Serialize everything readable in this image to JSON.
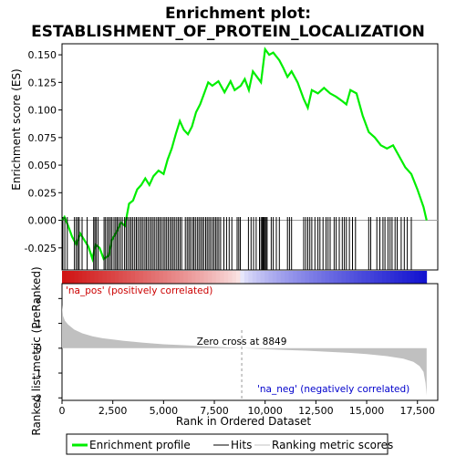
{
  "chart_data": {
    "title": "Enrichment plot:",
    "subtitle": "ESTABLISHMENT_OF_PROTEIN_LOCALIZATION",
    "x_axis": {
      "label": "Rank in Ordered Dataset",
      "range": [
        0,
        18500
      ],
      "ticks": [
        0,
        2500,
        5000,
        7500,
        10000,
        12500,
        15000,
        17500
      ],
      "tick_labels": [
        "0",
        "2,500",
        "5,000",
        "7,500",
        "10,000",
        "12,500",
        "15,000",
        "17,500"
      ]
    },
    "es_panel": {
      "type": "line",
      "ylabel": "Enrichment score (ES)",
      "ylim": [
        -0.045,
        0.16
      ],
      "yticks": [
        -0.025,
        0.0,
        0.025,
        0.05,
        0.075,
        0.1,
        0.125,
        0.15
      ],
      "ytick_labels": [
        "-0.025",
        "0.000",
        "0.025",
        "0.050",
        "0.075",
        "0.100",
        "0.125",
        "0.150"
      ],
      "series_name": "Enrichment profile",
      "color": "#00ee00",
      "points": [
        [
          0,
          0.0
        ],
        [
          120,
          0.003
        ],
        [
          300,
          -0.005
        ],
        [
          500,
          -0.015
        ],
        [
          700,
          -0.022
        ],
        [
          900,
          -0.012
        ],
        [
          1100,
          -0.018
        ],
        [
          1300,
          -0.024
        ],
        [
          1500,
          -0.035
        ],
        [
          1650,
          -0.022
        ],
        [
          1850,
          -0.025
        ],
        [
          2050,
          -0.035
        ],
        [
          2300,
          -0.032
        ],
        [
          2450,
          -0.018
        ],
        [
          2700,
          -0.01
        ],
        [
          2900,
          -0.002
        ],
        [
          3100,
          -0.005
        ],
        [
          3300,
          0.015
        ],
        [
          3500,
          0.018
        ],
        [
          3700,
          0.028
        ],
        [
          3900,
          0.032
        ],
        [
          4100,
          0.038
        ],
        [
          4300,
          0.032
        ],
        [
          4500,
          0.04
        ],
        [
          4750,
          0.045
        ],
        [
          5000,
          0.042
        ],
        [
          5200,
          0.055
        ],
        [
          5400,
          0.065
        ],
        [
          5600,
          0.078
        ],
        [
          5800,
          0.09
        ],
        [
          6000,
          0.082
        ],
        [
          6200,
          0.078
        ],
        [
          6400,
          0.085
        ],
        [
          6600,
          0.098
        ],
        [
          6800,
          0.105
        ],
        [
          7000,
          0.115
        ],
        [
          7200,
          0.125
        ],
        [
          7400,
          0.122
        ],
        [
          7700,
          0.126
        ],
        [
          8000,
          0.116
        ],
        [
          8300,
          0.126
        ],
        [
          8500,
          0.118
        ],
        [
          8800,
          0.122
        ],
        [
          9000,
          0.128
        ],
        [
          9200,
          0.118
        ],
        [
          9400,
          0.135
        ],
        [
          9600,
          0.13
        ],
        [
          9800,
          0.125
        ],
        [
          10000,
          0.155
        ],
        [
          10200,
          0.15
        ],
        [
          10400,
          0.152
        ],
        [
          10700,
          0.145
        ],
        [
          10900,
          0.138
        ],
        [
          11100,
          0.13
        ],
        [
          11300,
          0.135
        ],
        [
          11600,
          0.125
        ],
        [
          11900,
          0.11
        ],
        [
          12100,
          0.102
        ],
        [
          12300,
          0.118
        ],
        [
          12600,
          0.115
        ],
        [
          12900,
          0.12
        ],
        [
          13200,
          0.115
        ],
        [
          13500,
          0.112
        ],
        [
          13800,
          0.108
        ],
        [
          14000,
          0.105
        ],
        [
          14200,
          0.118
        ],
        [
          14500,
          0.115
        ],
        [
          14800,
          0.095
        ],
        [
          15100,
          0.08
        ],
        [
          15400,
          0.075
        ],
        [
          15700,
          0.068
        ],
        [
          16000,
          0.065
        ],
        [
          16300,
          0.068
        ],
        [
          16600,
          0.058
        ],
        [
          16900,
          0.048
        ],
        [
          17200,
          0.042
        ],
        [
          17500,
          0.028
        ],
        [
          17800,
          0.012
        ],
        [
          17950,
          0.0
        ]
      ]
    },
    "hits": {
      "series_name": "Hits",
      "color": "#000000",
      "positions": [
        40,
        140,
        260,
        610,
        700,
        780,
        850,
        990,
        1240,
        1560,
        1620,
        1690,
        1780,
        2070,
        2140,
        2230,
        2310,
        2390,
        2460,
        2560,
        2640,
        2710,
        2790,
        2880,
        2970,
        3080,
        3160,
        3240,
        3330,
        3410,
        3490,
        3580,
        3660,
        3740,
        3830,
        3910,
        3990,
        4080,
        4160,
        4240,
        4330,
        4410,
        4490,
        4570,
        4660,
        4740,
        4820,
        4900,
        4990,
        5070,
        5150,
        5230,
        5320,
        5400,
        5480,
        5560,
        5650,
        5730,
        5810,
        5890,
        6070,
        6160,
        6240,
        6320,
        6410,
        6490,
        6570,
        6660,
        6740,
        6820,
        6900,
        6980,
        7070,
        7150,
        7230,
        7310,
        7400,
        7480,
        7560,
        7640,
        7720,
        7810,
        7970,
        8100,
        8230,
        8360,
        8620,
        8700,
        8780,
        9180,
        9310,
        9430,
        9560,
        9720,
        9800,
        9850,
        9900,
        9950,
        10000,
        10050,
        10100,
        10300,
        10400,
        10550,
        10700,
        11100,
        11200,
        11300,
        11900,
        12000,
        12100,
        12200,
        12300,
        12450,
        12600,
        12700,
        12850,
        13000,
        13100,
        13200,
        13400,
        13500,
        13650,
        13800,
        13900,
        14000,
        14150,
        14300,
        14450,
        15100,
        15200,
        15500,
        15650,
        15800,
        15900,
        16050,
        16150,
        16250,
        16400,
        16500,
        16700,
        16850,
        17000,
        17200
      ]
    },
    "rank_panel": {
      "type": "area",
      "ylabel": "Ranked list metric (PreRanked)",
      "ylim": [
        -2.1,
        2.6
      ],
      "yticks": [
        -2,
        -1,
        0,
        1,
        2
      ],
      "ytick_labels": [
        "-2",
        "-1",
        "0",
        "1",
        "2"
      ],
      "series_name": "Ranking metric scores",
      "color": "#c0c0c0",
      "points": [
        [
          0,
          1.75
        ],
        [
          50,
          1.3
        ],
        [
          150,
          1.1
        ],
        [
          300,
          0.95
        ],
        [
          600,
          0.75
        ],
        [
          1000,
          0.6
        ],
        [
          1500,
          0.48
        ],
        [
          2000,
          0.4
        ],
        [
          3000,
          0.3
        ],
        [
          4000,
          0.22
        ],
        [
          5000,
          0.16
        ],
        [
          6000,
          0.12
        ],
        [
          7000,
          0.08
        ],
        [
          8000,
          0.04
        ],
        [
          8849,
          0.0
        ],
        [
          10000,
          -0.04
        ],
        [
          11000,
          -0.07
        ],
        [
          12000,
          -0.1
        ],
        [
          13000,
          -0.14
        ],
        [
          14000,
          -0.18
        ],
        [
          15000,
          -0.24
        ],
        [
          16000,
          -0.32
        ],
        [
          16800,
          -0.42
        ],
        [
          17300,
          -0.55
        ],
        [
          17600,
          -0.72
        ],
        [
          17800,
          -0.95
        ],
        [
          17900,
          -1.4
        ],
        [
          17950,
          -1.9
        ]
      ],
      "zero_cross": 8849,
      "zero_cross_label": "Zero cross at 8849",
      "pos_label": "'na_pos' (positively correlated)",
      "neg_label": "'na_neg' (negatively correlated)",
      "pos_color": "#cc0000",
      "neg_color": "#0000cc",
      "zero_cross_color": "#999999"
    },
    "legend": {
      "placement": "bottom",
      "entries": [
        {
          "label": "Enrichment profile",
          "color": "#00ee00",
          "style": "thick"
        },
        {
          "label": "Hits",
          "color": "#000000",
          "style": "thin"
        },
        {
          "label": "Ranking metric scores",
          "color": "#c0c0c0",
          "style": "thin"
        }
      ]
    }
  }
}
